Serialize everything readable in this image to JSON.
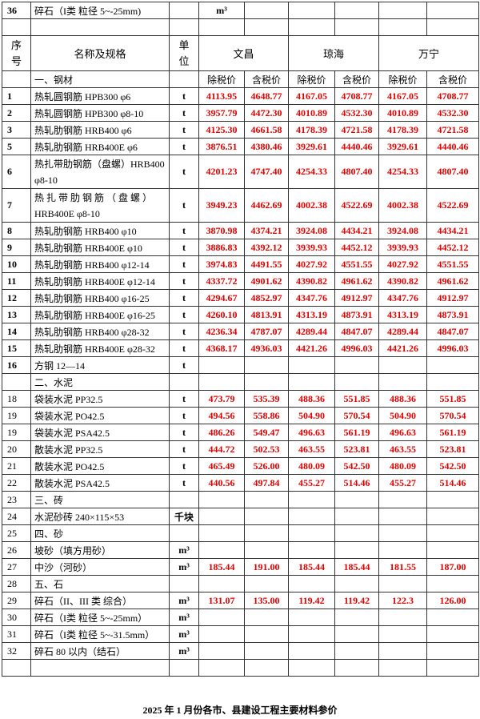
{
  "top_row": {
    "no": "36",
    "name": "碎石（I类 粒径 5~-25mm)",
    "unit": "m³"
  },
  "header": {
    "no": "序\n号",
    "name": "名称及规格",
    "unit": "单\n位",
    "cities": [
      "文昌",
      "琼海",
      "万宁"
    ],
    "sub": [
      "除税价",
      "含税价"
    ],
    "section": "一、钢材"
  },
  "rows": [
    {
      "no": "1",
      "name": "热轧圆钢筋 HPB300 φ6",
      "unit": "t",
      "prices": [
        "4113.95",
        "4648.77",
        "4167.05",
        "4708.77",
        "4167.05",
        "4708.77"
      ]
    },
    {
      "no": "2",
      "name": "热轧圆钢筋 HPB300 φ8-10",
      "unit": "t",
      "prices": [
        "3957.79",
        "4472.30",
        "4010.89",
        "4532.30",
        "4010.89",
        "4532.30"
      ]
    },
    {
      "no": "3",
      "name": "热轧肋钢筋 HRB400 φ6",
      "unit": "t",
      "prices": [
        "4125.30",
        "4661.58",
        "4178.39",
        "4721.58",
        "4178.39",
        "4721.58"
      ]
    },
    {
      "no": "5",
      "name": "热轧肋钢筋 HRB400E φ6",
      "unit": "t",
      "prices": [
        "3876.51",
        "4380.46",
        "3929.61",
        "4440.46",
        "3929.61",
        "4440.46"
      ]
    },
    {
      "no": "6",
      "name": "热扎带肋钢筋（盘螺）HRB400 φ8-10",
      "unit": "t",
      "tall": true,
      "prices": [
        "4201.23",
        "4747.40",
        "4254.33",
        "4807.40",
        "4254.33",
        "4807.40"
      ]
    },
    {
      "no": "7",
      "name": "热 扎 带 肋 钢 筋 （ 盘 螺 ） HRB400E φ8-10",
      "unit": "t",
      "tall": true,
      "prices": [
        "3949.23",
        "4462.69",
        "4002.38",
        "4522.69",
        "4002.38",
        "4522.69"
      ]
    },
    {
      "no": "8",
      "name": "热轧肋钢筋 HRB400 φ10",
      "unit": "t",
      "prices": [
        "3870.98",
        "4374.21",
        "3924.08",
        "4434.21",
        "3924.08",
        "4434.21"
      ]
    },
    {
      "no": "9",
      "name": "热轧肋钢筋 HRB400E φ10",
      "unit": "t",
      "prices": [
        "3886.83",
        "4392.12",
        "3939.93",
        "4452.12",
        "3939.93",
        "4452.12"
      ]
    },
    {
      "no": "10",
      "name": "热轧肋钢筋 HRB400 φ12-14",
      "unit": "t",
      "prices": [
        "3974.83",
        "4491.55",
        "4027.92",
        "4551.55",
        "4027.92",
        "4551.55"
      ]
    },
    {
      "no": "11",
      "name": "热轧肋钢筋 HRB400E φ12-14",
      "unit": "t",
      "prices": [
        "4337.72",
        "4901.62",
        "4390.82",
        "4961.62",
        "4390.82",
        "4961.62"
      ]
    },
    {
      "no": "12",
      "name": "热轧肋钢筋 HRB400 φ16-25",
      "unit": "t",
      "prices": [
        "4294.67",
        "4852.97",
        "4347.76",
        "4912.97",
        "4347.76",
        "4912.97"
      ]
    },
    {
      "no": "13",
      "name": "热轧肋钢筋 HRB400E φ16-25",
      "unit": "t",
      "prices": [
        "4260.10",
        "4813.91",
        "4313.19",
        "4873.91",
        "4313.19",
        "4873.91"
      ]
    },
    {
      "no": "14",
      "name": "热轧肋钢筋 HRB400 φ28-32",
      "unit": "t",
      "prices": [
        "4236.34",
        "4787.07",
        "4289.44",
        "4847.07",
        "4289.44",
        "4847.07"
      ]
    },
    {
      "no": "15",
      "name": "热轧肋钢筋 HRB400E φ28-32",
      "unit": "t",
      "prices": [
        "4368.17",
        "4936.03",
        "4421.26",
        "4996.03",
        "4421.26",
        "4996.03"
      ]
    },
    {
      "no": "16",
      "name": "方钢 12—14",
      "unit": "t"
    },
    {
      "name": "二、水泥"
    },
    {
      "no": "18",
      "name": "袋装水泥 PP32.5",
      "unit": "t",
      "prices": [
        "473.79",
        "535.39",
        "488.36",
        "551.85",
        "488.36",
        "551.85"
      ]
    },
    {
      "no": "19",
      "name": "袋装水泥 PO42.5",
      "unit": "t",
      "prices": [
        "494.56",
        "558.86",
        "504.90",
        "570.54",
        "504.90",
        "570.54"
      ]
    },
    {
      "no": "19",
      "name": "袋装水泥 PSA42.5",
      "unit": "t",
      "prices": [
        "486.26",
        "549.47",
        "496.63",
        "561.19",
        "496.63",
        "561.19"
      ]
    },
    {
      "no": "20",
      "name": "散装水泥 PP32.5",
      "unit": "t",
      "prices": [
        "444.72",
        "502.53",
        "463.55",
        "523.81",
        "463.55",
        "523.81"
      ]
    },
    {
      "no": "21",
      "name": "散装水泥 PO42.5",
      "unit": "t",
      "prices": [
        "465.49",
        "526.00",
        "480.09",
        "542.50",
        "480.09",
        "542.50"
      ]
    },
    {
      "no": "22",
      "name": "散装水泥 PSA42.5",
      "unit": "t",
      "prices": [
        "440.56",
        "497.84",
        "455.27",
        "514.46",
        "455.27",
        "514.46"
      ]
    },
    {
      "no": "23",
      "name": "三、砖"
    },
    {
      "no": "24",
      "name": "水泥砂砖 240×115×53",
      "unit": "千块"
    },
    {
      "no": "25",
      "name": "四、砂"
    },
    {
      "no": "26",
      "name": "坡砂（填方用砂）",
      "unit": "m³"
    },
    {
      "no": "27",
      "name": "中沙（河砂）",
      "unit": "m³",
      "prices": [
        "185.44",
        "191.00",
        "185.44",
        "185.44",
        "181.55",
        "187.00"
      ]
    },
    {
      "no": "28",
      "name": "五、石"
    },
    {
      "no": "29",
      "name": "碎石（II、III 类 综合）",
      "unit": "m³",
      "prices": [
        "131.07",
        "135.00",
        "119.42",
        "119.42",
        "122.3",
        "126.00"
      ]
    },
    {
      "no": "30",
      "name": "碎石（I类 粒径 5~-25mm）",
      "unit": "m³"
    },
    {
      "no": "31",
      "name": "碎石（I类 粒径 5~-31.5mm）",
      "unit": "m³"
    },
    {
      "no": "32",
      "name": "碎石 80 以内（结石）",
      "unit": "m³"
    }
  ],
  "footer": "2025 年 1 月份各市、县建设工程主要材料参价"
}
